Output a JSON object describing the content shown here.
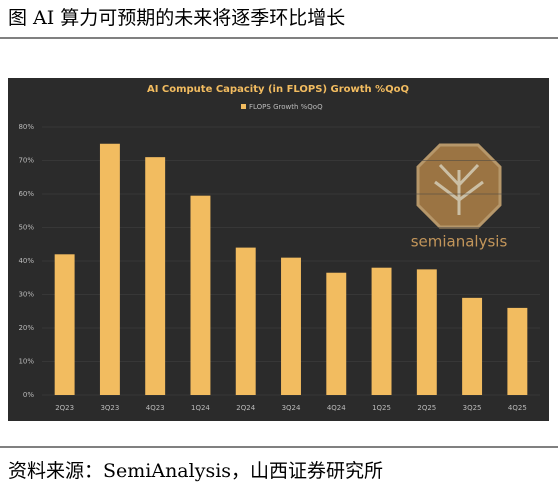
{
  "caption": "图  AI 算力可预期的未来将逐季环比增长",
  "source": "资料来源：SemiAnalysis，山西证券研究所",
  "logo_text": "semianalysis",
  "chart_data": {
    "type": "bar",
    "title": "AI Compute Capacity (in FLOPS) Growth %QoQ",
    "categories": [
      "2Q23",
      "3Q23",
      "4Q23",
      "1Q24",
      "2Q24",
      "3Q24",
      "4Q24",
      "1Q25",
      "2Q25",
      "3Q25",
      "4Q25"
    ],
    "series": [
      {
        "name": "FLOPS Growth %QoQ",
        "color": "#f2bc60",
        "values": [
          42,
          75,
          71,
          59.5,
          44,
          41,
          36.5,
          38,
          37.5,
          29,
          26
        ]
      }
    ],
    "ylim": [
      0,
      80
    ],
    "yticks": [
      {
        "value": 0,
        "label": "0%"
      },
      {
        "value": 10,
        "label": "10%"
      },
      {
        "value": 20,
        "label": "20%"
      },
      {
        "value": 30,
        "label": "30%"
      },
      {
        "value": 40,
        "label": "40%"
      },
      {
        "value": 50,
        "label": "50%"
      },
      {
        "value": 60,
        "label": "60%"
      },
      {
        "value": 70,
        "label": "70%"
      },
      {
        "value": 80,
        "label": "80%"
      }
    ],
    "grid": true,
    "legend": "top"
  }
}
